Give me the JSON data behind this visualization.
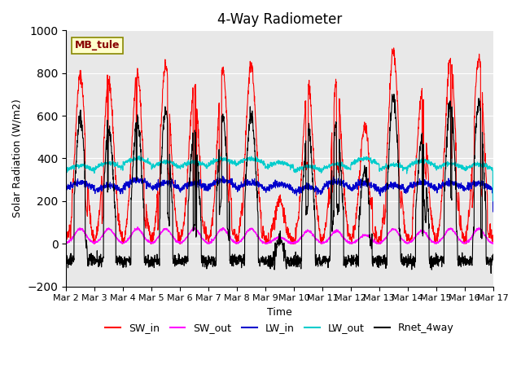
{
  "title": "4-Way Radiometer",
  "xlabel": "Time",
  "ylabel": "Solar Radiation (W/m2)",
  "ylim": [
    -200,
    1000
  ],
  "xlim": [
    0,
    15
  ],
  "xtick_labels": [
    "Mar 2",
    "Mar 3",
    "Mar 4",
    "Mar 5",
    "Mar 6",
    "Mar 7",
    "Mar 8",
    "Mar 9",
    "Mar 10",
    "Mar 11",
    "Mar 12",
    "Mar 13",
    "Mar 14",
    "Mar 15",
    "Mar 16",
    "Mar 17"
  ],
  "ytick_values": [
    -200,
    0,
    200,
    400,
    600,
    800,
    1000
  ],
  "station_label": "MB_tule",
  "colors": {
    "SW_in": "#ff0000",
    "SW_out": "#ff00ff",
    "LW_in": "#0000cc",
    "LW_out": "#00cccc",
    "Rnet_4way": "#000000"
  },
  "legend_labels": [
    "SW_in",
    "SW_out",
    "LW_in",
    "LW_out",
    "Rnet_4way"
  ],
  "bg_color": "#e8e8e8"
}
